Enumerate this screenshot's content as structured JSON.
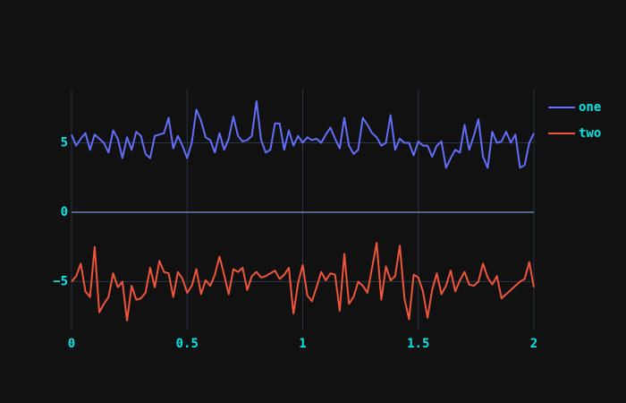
{
  "chart_data": {
    "type": "line",
    "x": [
      0,
      0.02,
      0.04,
      0.06,
      0.08,
      0.1,
      0.12,
      0.14,
      0.16,
      0.18,
      0.2,
      0.22,
      0.24,
      0.26,
      0.28,
      0.3,
      0.32,
      0.34,
      0.36,
      0.38,
      0.4,
      0.42,
      0.44,
      0.46,
      0.48,
      0.5,
      0.52,
      0.54,
      0.56,
      0.58,
      0.6,
      0.62,
      0.64,
      0.66,
      0.68,
      0.7,
      0.72,
      0.74,
      0.76,
      0.78,
      0.8,
      0.82,
      0.84,
      0.86,
      0.88,
      0.9,
      0.92,
      0.94,
      0.96,
      0.98,
      1,
      1.02,
      1.04,
      1.06,
      1.08,
      1.1,
      1.12,
      1.14,
      1.16,
      1.18,
      1.2,
      1.22,
      1.24,
      1.26,
      1.28,
      1.3,
      1.32,
      1.34,
      1.36,
      1.38,
      1.4,
      1.42,
      1.44,
      1.46,
      1.48,
      1.5,
      1.52,
      1.54,
      1.56,
      1.58,
      1.6,
      1.62,
      1.64,
      1.66,
      1.68,
      1.7,
      1.72,
      1.74,
      1.76,
      1.78,
      1.8,
      1.82,
      1.84,
      1.86,
      1.88,
      1.9,
      1.92,
      1.94,
      1.96,
      1.98,
      2
    ],
    "series": [
      {
        "name": "one",
        "color": "#636efa",
        "values": [
          5.6,
          4.8,
          5.3,
          5.7,
          4.5,
          5.6,
          5.3,
          5.0,
          4.3,
          5.9,
          5.3,
          3.9,
          5.4,
          4.5,
          5.8,
          5.5,
          4.2,
          3.9,
          5.5,
          5.6,
          5.7,
          6.8,
          4.6,
          5.5,
          4.8,
          3.9,
          5.0,
          7.4,
          6.6,
          5.4,
          5.2,
          4.3,
          5.7,
          4.5,
          5.3,
          6.9,
          5.5,
          5.1,
          5.2,
          5.5,
          8.0,
          5.2,
          4.3,
          4.5,
          6.4,
          6.4,
          4.5,
          5.9,
          4.8,
          5.5,
          5.0,
          5.4,
          5.2,
          5.3,
          5.0,
          5.6,
          6.1,
          5.3,
          4.6,
          6.8,
          4.8,
          4.2,
          4.5,
          6.8,
          6.3,
          5.7,
          5.4,
          4.8,
          5.0,
          7.0,
          4.5,
          5.3,
          5.0,
          5.0,
          4.1,
          5.1,
          4.8,
          4.8,
          4.0,
          4.8,
          5.1,
          3.2,
          3.9,
          4.5,
          4.3,
          6.3,
          4.5,
          5.5,
          6.7,
          4.0,
          3.2,
          5.8,
          5.0,
          5.1,
          5.8,
          5.0,
          5.6,
          3.2,
          3.4,
          5.0,
          5.7
        ]
      },
      {
        "name": "two",
        "color": "#ef553b",
        "values": [
          -5.0,
          -4.6,
          -3.7,
          -5.7,
          -6.1,
          -2.5,
          -7.2,
          -6.6,
          -6.1,
          -4.4,
          -5.4,
          -5.0,
          -7.8,
          -5.3,
          -6.3,
          -6.2,
          -5.8,
          -4.0,
          -5.4,
          -3.5,
          -4.3,
          -4.4,
          -6.1,
          -4.3,
          -4.8,
          -5.8,
          -5.3,
          -4.1,
          -5.9,
          -4.9,
          -5.3,
          -4.5,
          -3.2,
          -4.5,
          -5.9,
          -4.1,
          -4.3,
          -4.0,
          -5.6,
          -4.6,
          -4.3,
          -4.7,
          -4.6,
          -4.4,
          -4.2,
          -4.8,
          -4.5,
          -4.0,
          -7.3,
          -5.1,
          -3.8,
          -6.0,
          -6.4,
          -5.4,
          -4.3,
          -4.9,
          -4.4,
          -4.5,
          -7.1,
          -3.0,
          -6.6,
          -6.1,
          -5.0,
          -5.3,
          -5.8,
          -4.0,
          -2.2,
          -6.3,
          -3.9,
          -4.9,
          -4.6,
          -2.4,
          -6.2,
          -7.7,
          -4.5,
          -4.7,
          -5.7,
          -7.6,
          -5.6,
          -4.4,
          -5.9,
          -5.3,
          -4.2,
          -5.7,
          -4.9,
          -4.3,
          -5.2,
          -5.3,
          -5.0,
          -3.7,
          -4.7,
          -5.2,
          -4.6,
          -6.2,
          -5.9,
          -5.6,
          -5.3,
          -5.0,
          -4.8,
          -3.6,
          -5.4
        ]
      }
    ],
    "xlim": [
      0,
      2
    ],
    "xticks": [
      0,
      0.5,
      1,
      1.5,
      2
    ],
    "ylim": [
      -8.45,
      8.84
    ],
    "yticks": [
      {
        "value": -5,
        "label": "−5"
      },
      0,
      5
    ],
    "grid": true,
    "legend": "right"
  }
}
